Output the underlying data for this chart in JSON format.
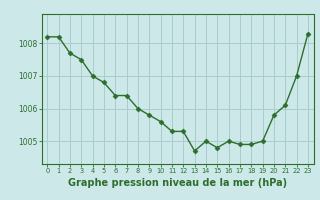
{
  "x": [
    0,
    1,
    2,
    3,
    4,
    5,
    6,
    7,
    8,
    9,
    10,
    11,
    12,
    13,
    14,
    15,
    16,
    17,
    18,
    19,
    20,
    21,
    22,
    23
  ],
  "y": [
    1008.2,
    1008.2,
    1007.7,
    1007.5,
    1007.0,
    1006.8,
    1006.4,
    1006.4,
    1006.0,
    1005.8,
    1005.6,
    1005.3,
    1005.3,
    1004.7,
    1005.0,
    1004.8,
    1005.0,
    1004.9,
    1004.9,
    1005.0,
    1005.8,
    1006.1,
    1007.0,
    1008.3
  ],
  "line_color": "#2d6e2d",
  "marker": "D",
  "marker_size": 2.5,
  "bg_color": "#cce8e8",
  "grid_color": "#aacccc",
  "axis_color": "#2d6e2d",
  "xlabel": "Graphe pression niveau de la mer (hPa)",
  "xlabel_fontsize": 7,
  "ylim_min": 1004.3,
  "ylim_max": 1008.9,
  "yticks": [
    1005,
    1006,
    1007,
    1008
  ],
  "xticks": [
    0,
    1,
    2,
    3,
    4,
    5,
    6,
    7,
    8,
    9,
    10,
    11,
    12,
    13,
    14,
    15,
    16,
    17,
    18,
    19,
    20,
    21,
    22,
    23
  ]
}
